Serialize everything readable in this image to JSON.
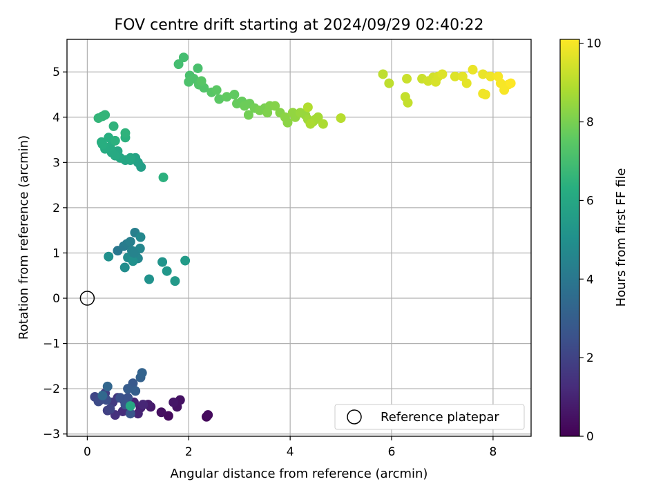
{
  "chart_data": {
    "type": "scatter",
    "title": "FOV centre drift starting at 2024/09/29 02:40:22",
    "xlabel": "Angular distance from reference (arcmin)",
    "ylabel": "Rotation from reference (arcmin)",
    "xlim": [
      -0.4,
      8.75
    ],
    "ylim": [
      -3.05,
      5.72
    ],
    "xticks": [
      0,
      2,
      4,
      6,
      8
    ],
    "yticks": [
      -3,
      -2,
      -1,
      0,
      1,
      2,
      3,
      4,
      5
    ],
    "xtick_labels": [
      "0",
      "2",
      "4",
      "6",
      "8"
    ],
    "ytick_labels": [
      "−3",
      "−2",
      "−1",
      "0",
      "1",
      "2",
      "3",
      "4",
      "5"
    ],
    "grid": true,
    "legend": {
      "position": "lower right",
      "entries": [
        "Reference platepar"
      ]
    },
    "reference_point": {
      "x": 0,
      "y": 0
    },
    "colorbar": {
      "label": "Hours from first FF file",
      "min": 0,
      "max": 10.1,
      "ticks": [
        0,
        2,
        4,
        6,
        8,
        10
      ],
      "tick_labels": [
        "0",
        "2",
        "4",
        "6",
        "8",
        "10"
      ],
      "colormap": "viridis"
    },
    "series": [
      {
        "points": [
          {
            "x": 2.35,
            "y": -2.62,
            "c": 0.2
          },
          {
            "x": 2.38,
            "y": -2.58,
            "c": 0.3
          },
          {
            "x": 1.6,
            "y": -2.6,
            "c": 0.3
          },
          {
            "x": 1.46,
            "y": -2.52,
            "c": 0.4
          },
          {
            "x": 1.77,
            "y": -2.4,
            "c": 0.5
          },
          {
            "x": 1.83,
            "y": -2.25,
            "c": 0.5
          },
          {
            "x": 1.7,
            "y": -2.3,
            "c": 0.6
          },
          {
            "x": 1.25,
            "y": -2.4,
            "c": 0.7
          },
          {
            "x": 1.2,
            "y": -2.35,
            "c": 0.8
          },
          {
            "x": 1.05,
            "y": -2.42,
            "c": 0.9
          },
          {
            "x": 0.92,
            "y": -2.3,
            "c": 1.0
          },
          {
            "x": 1.0,
            "y": -2.55,
            "c": 1.0
          },
          {
            "x": 1.1,
            "y": -2.35,
            "c": 1.1
          },
          {
            "x": 0.82,
            "y": -2.45,
            "c": 1.2
          },
          {
            "x": 0.7,
            "y": -2.5,
            "c": 1.3
          },
          {
            "x": 0.55,
            "y": -2.58,
            "c": 1.4
          },
          {
            "x": 0.72,
            "y": -2.25,
            "c": 1.5
          },
          {
            "x": 0.6,
            "y": -2.2,
            "c": 1.6
          },
          {
            "x": 0.5,
            "y": -2.3,
            "c": 1.7
          },
          {
            "x": 0.35,
            "y": -2.1,
            "c": 1.8
          },
          {
            "x": 0.4,
            "y": -2.48,
            "c": 1.9
          },
          {
            "x": 0.45,
            "y": -2.45,
            "c": 2.0
          },
          {
            "x": 0.25,
            "y": -2.25,
            "c": 2.0
          },
          {
            "x": 0.15,
            "y": -2.18,
            "c": 2.1
          },
          {
            "x": 0.3,
            "y": -2.2,
            "c": 2.2
          },
          {
            "x": 0.22,
            "y": -2.28,
            "c": 2.3
          },
          {
            "x": 0.38,
            "y": -2.25,
            "c": 2.4
          },
          {
            "x": 0.65,
            "y": -2.2,
            "c": 2.5
          },
          {
            "x": 0.8,
            "y": -2.2,
            "c": 2.5
          },
          {
            "x": 0.75,
            "y": -2.35,
            "c": 2.6
          },
          {
            "x": 0.85,
            "y": -2.55,
            "c": 2.7
          },
          {
            "x": 0.9,
            "y": -1.88,
            "c": 2.8
          },
          {
            "x": 0.8,
            "y": -2.0,
            "c": 2.9
          },
          {
            "x": 0.95,
            "y": -2.05,
            "c": 3.0
          },
          {
            "x": 1.05,
            "y": -1.75,
            "c": 3.1
          },
          {
            "x": 1.08,
            "y": -1.65,
            "c": 3.2
          },
          {
            "x": 0.4,
            "y": -1.95,
            "c": 3.3
          },
          {
            "x": 0.3,
            "y": -2.15,
            "c": 3.4
          },
          {
            "x": 0.85,
            "y": -2.38,
            "c": 6.0
          },
          {
            "x": 0.6,
            "y": 1.05,
            "c": 4.0
          },
          {
            "x": 0.72,
            "y": 1.15,
            "c": 4.1
          },
          {
            "x": 0.78,
            "y": 1.2,
            "c": 4.2
          },
          {
            "x": 0.85,
            "y": 1.25,
            "c": 4.3
          },
          {
            "x": 0.94,
            "y": 1.45,
            "c": 4.3
          },
          {
            "x": 0.88,
            "y": 1.05,
            "c": 4.4
          },
          {
            "x": 0.95,
            "y": 0.95,
            "c": 4.5
          },
          {
            "x": 1.0,
            "y": 0.88,
            "c": 4.6
          },
          {
            "x": 1.04,
            "y": 1.1,
            "c": 4.6
          },
          {
            "x": 1.05,
            "y": 1.35,
            "c": 4.7
          },
          {
            "x": 0.8,
            "y": 0.9,
            "c": 4.8
          },
          {
            "x": 0.74,
            "y": 0.68,
            "c": 4.9
          },
          {
            "x": 0.9,
            "y": 0.82,
            "c": 5.0
          },
          {
            "x": 0.42,
            "y": 0.92,
            "c": 5.0
          },
          {
            "x": 1.22,
            "y": 0.42,
            "c": 5.1
          },
          {
            "x": 1.48,
            "y": 0.8,
            "c": 5.2
          },
          {
            "x": 1.57,
            "y": 0.6,
            "c": 5.3
          },
          {
            "x": 1.73,
            "y": 0.38,
            "c": 5.4
          },
          {
            "x": 1.93,
            "y": 0.83,
            "c": 5.5
          },
          {
            "x": 0.92,
            "y": 1.0,
            "c": 4.5
          },
          {
            "x": 1.5,
            "y": 2.67,
            "c": 6.4
          },
          {
            "x": 1.06,
            "y": 2.9,
            "c": 5.6
          },
          {
            "x": 1.0,
            "y": 3.0,
            "c": 5.7
          },
          {
            "x": 0.95,
            "y": 3.1,
            "c": 5.8
          },
          {
            "x": 0.85,
            "y": 3.05,
            "c": 5.9
          },
          {
            "x": 0.75,
            "y": 3.05,
            "c": 5.9
          },
          {
            "x": 0.65,
            "y": 3.1,
            "c": 6.0
          },
          {
            "x": 0.6,
            "y": 3.25,
            "c": 6.0
          },
          {
            "x": 0.55,
            "y": 3.15,
            "c": 6.1
          },
          {
            "x": 0.48,
            "y": 3.22,
            "c": 6.1
          },
          {
            "x": 0.45,
            "y": 3.35,
            "c": 6.2
          },
          {
            "x": 0.35,
            "y": 3.3,
            "c": 6.2
          },
          {
            "x": 0.3,
            "y": 3.4,
            "c": 6.3
          },
          {
            "x": 0.28,
            "y": 3.45,
            "c": 6.3
          },
          {
            "x": 0.42,
            "y": 3.55,
            "c": 6.3
          },
          {
            "x": 0.55,
            "y": 3.48,
            "c": 6.4
          },
          {
            "x": 0.75,
            "y": 3.55,
            "c": 6.4
          },
          {
            "x": 0.75,
            "y": 3.65,
            "c": 6.5
          },
          {
            "x": 0.52,
            "y": 3.8,
            "c": 6.5
          },
          {
            "x": 0.35,
            "y": 4.05,
            "c": 6.6
          },
          {
            "x": 0.3,
            "y": 4.02,
            "c": 6.6
          },
          {
            "x": 0.22,
            "y": 3.98,
            "c": 6.6
          },
          {
            "x": 0.85,
            "y": 3.1,
            "c": 6.0
          },
          {
            "x": 1.8,
            "y": 5.17,
            "c": 7.0
          },
          {
            "x": 1.9,
            "y": 5.32,
            "c": 7.0
          },
          {
            "x": 2.18,
            "y": 5.08,
            "c": 7.1
          },
          {
            "x": 2.02,
            "y": 4.92,
            "c": 7.1
          },
          {
            "x": 2.1,
            "y": 4.85,
            "c": 7.2
          },
          {
            "x": 2.0,
            "y": 4.78,
            "c": 7.2
          },
          {
            "x": 2.2,
            "y": 4.72,
            "c": 7.3
          },
          {
            "x": 2.3,
            "y": 4.65,
            "c": 7.3
          },
          {
            "x": 2.25,
            "y": 4.8,
            "c": 7.4
          },
          {
            "x": 2.45,
            "y": 4.55,
            "c": 7.4
          },
          {
            "x": 2.55,
            "y": 4.6,
            "c": 7.5
          },
          {
            "x": 2.6,
            "y": 4.4,
            "c": 7.5
          },
          {
            "x": 2.75,
            "y": 4.45,
            "c": 7.6
          },
          {
            "x": 2.9,
            "y": 4.5,
            "c": 7.6
          },
          {
            "x": 2.95,
            "y": 4.3,
            "c": 7.7
          },
          {
            "x": 3.05,
            "y": 4.35,
            "c": 7.7
          },
          {
            "x": 3.1,
            "y": 4.25,
            "c": 7.8
          },
          {
            "x": 3.2,
            "y": 4.3,
            "c": 7.8
          },
          {
            "x": 3.18,
            "y": 4.05,
            "c": 7.9
          },
          {
            "x": 3.3,
            "y": 4.2,
            "c": 7.9
          },
          {
            "x": 3.4,
            "y": 4.15,
            "c": 8.0
          },
          {
            "x": 3.5,
            "y": 4.2,
            "c": 8.0
          },
          {
            "x": 3.55,
            "y": 4.1,
            "c": 8.1
          },
          {
            "x": 3.6,
            "y": 4.25,
            "c": 8.1
          },
          {
            "x": 3.7,
            "y": 4.25,
            "c": 8.2
          },
          {
            "x": 3.8,
            "y": 4.1,
            "c": 8.2
          },
          {
            "x": 3.9,
            "y": 4.0,
            "c": 8.3
          },
          {
            "x": 3.95,
            "y": 3.88,
            "c": 8.3
          },
          {
            "x": 4.05,
            "y": 4.1,
            "c": 8.4
          },
          {
            "x": 4.1,
            "y": 4.0,
            "c": 8.4
          },
          {
            "x": 4.2,
            "y": 4.1,
            "c": 8.5
          },
          {
            "x": 4.3,
            "y": 4.05,
            "c": 8.5
          },
          {
            "x": 4.35,
            "y": 3.95,
            "c": 8.6
          },
          {
            "x": 4.45,
            "y": 3.9,
            "c": 8.6
          },
          {
            "x": 4.5,
            "y": 3.95,
            "c": 8.7
          },
          {
            "x": 4.55,
            "y": 4.0,
            "c": 8.7
          },
          {
            "x": 4.65,
            "y": 3.85,
            "c": 8.8
          },
          {
            "x": 4.4,
            "y": 3.85,
            "c": 8.8
          },
          {
            "x": 4.35,
            "y": 4.22,
            "c": 8.9
          },
          {
            "x": 5.0,
            "y": 3.98,
            "c": 9.0
          },
          {
            "x": 5.83,
            "y": 4.95,
            "c": 9.1
          },
          {
            "x": 5.95,
            "y": 4.75,
            "c": 9.1
          },
          {
            "x": 6.27,
            "y": 4.45,
            "c": 9.2
          },
          {
            "x": 6.32,
            "y": 4.32,
            "c": 9.2
          },
          {
            "x": 6.3,
            "y": 4.85,
            "c": 9.3
          },
          {
            "x": 6.6,
            "y": 4.85,
            "c": 9.3
          },
          {
            "x": 6.72,
            "y": 4.8,
            "c": 9.4
          },
          {
            "x": 6.82,
            "y": 4.88,
            "c": 9.4
          },
          {
            "x": 6.87,
            "y": 4.78,
            "c": 9.5
          },
          {
            "x": 6.92,
            "y": 4.9,
            "c": 9.5
          },
          {
            "x": 7.0,
            "y": 4.95,
            "c": 9.6
          },
          {
            "x": 7.25,
            "y": 4.9,
            "c": 9.6
          },
          {
            "x": 7.4,
            "y": 4.9,
            "c": 9.7
          },
          {
            "x": 7.48,
            "y": 4.75,
            "c": 9.7
          },
          {
            "x": 7.6,
            "y": 5.05,
            "c": 9.8
          },
          {
            "x": 7.8,
            "y": 4.95,
            "c": 9.8
          },
          {
            "x": 7.85,
            "y": 4.5,
            "c": 9.9
          },
          {
            "x": 7.8,
            "y": 4.52,
            "c": 9.9
          },
          {
            "x": 7.95,
            "y": 4.9,
            "c": 9.9
          },
          {
            "x": 8.1,
            "y": 4.9,
            "c": 10.0
          },
          {
            "x": 8.15,
            "y": 4.75,
            "c": 10.0
          },
          {
            "x": 8.22,
            "y": 4.6,
            "c": 10.0
          },
          {
            "x": 8.3,
            "y": 4.72,
            "c": 10.0
          },
          {
            "x": 8.35,
            "y": 4.75,
            "c": 10.1
          }
        ]
      }
    ]
  }
}
